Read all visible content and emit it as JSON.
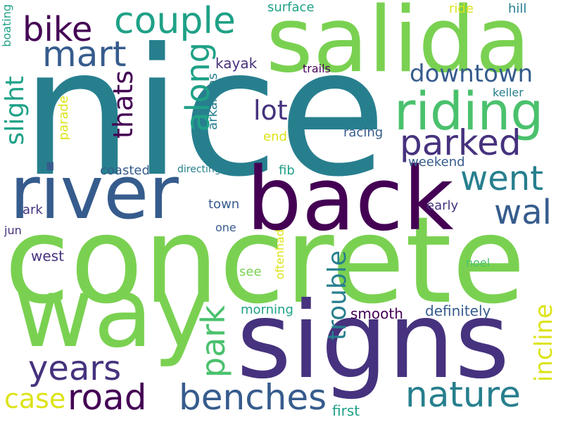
{
  "palette": {
    "dark_purple": "#440154",
    "indigo": "#46327e",
    "slate_blue": "#365c8d",
    "teal": "#277f8e",
    "sea_green": "#1fa187",
    "green": "#4ac16d",
    "lime": "#7ad151",
    "yellow": "#dde318"
  },
  "words": {
    "nice": "nice",
    "concrete": "concrete",
    "salida": "salida",
    "signs": "signs",
    "back": "back",
    "river": "river",
    "way": "way",
    "riding": "riding",
    "benches": "benches",
    "road": "road",
    "nature": "nature",
    "couple": "couple",
    "mart": "mart",
    "bike": "bike",
    "parked": "parked",
    "went": "went",
    "wal": "wal",
    "years": "years",
    "downtown": "downtown",
    "lot": "lot",
    "park": "park",
    "along": "along",
    "thats": "thats",
    "slight": "slight",
    "trouble": "trouble",
    "incline": "incline",
    "case": "case",
    "kayak": "kayak",
    "surface": "surface",
    "ride": "ride",
    "hill": "hill",
    "trails": "trails",
    "keller": "keller",
    "arkansas": "arkansas",
    "parade": "parade",
    "end": "end",
    "racing": "racing",
    "coasted": "coasted",
    "directing": "directing",
    "fib": "fib",
    "weekend": "weekend",
    "town": "town",
    "ark": "ark",
    "early": "early",
    "jun": "jun",
    "one": "one",
    "oftenhad": "oftenhad",
    "west": "west",
    "noel": "noel",
    "see": "see",
    "morning": "morning",
    "smooth": "smooth",
    "definitely": "definitely",
    "first": "first",
    "boating": "boating"
  }
}
